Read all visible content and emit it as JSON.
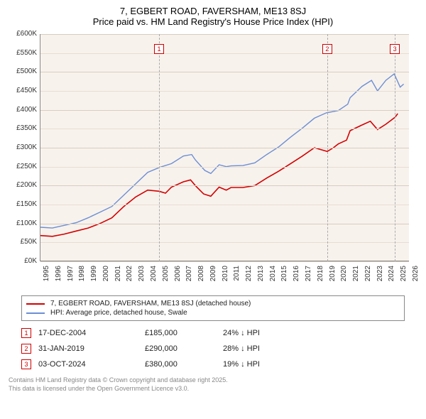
{
  "title_line1": "7, EGBERT ROAD, FAVERSHAM, ME13 8SJ",
  "title_line2": "Price paid vs. HM Land Registry's House Price Index (HPI)",
  "chart": {
    "type": "line",
    "background_color": "#f8f2ed",
    "grid_color": "#e6ddd3",
    "axis_color": "#888888",
    "y": {
      "min": 0,
      "max": 600,
      "step": 50,
      "unit": "K",
      "prefix": "£",
      "label_fontsize": 10
    },
    "x": {
      "min": 1995,
      "max": 2026,
      "step": 1,
      "label_fontsize": 10,
      "rotation": -90
    },
    "series": [
      {
        "id": "price_paid",
        "label": "7, EGBERT ROAD, FAVERSHAM, ME13 8SJ (detached house)",
        "color": "#d40000",
        "line_width": 1.6,
        "points": [
          [
            1995,
            68
          ],
          [
            1996,
            66
          ],
          [
            1997,
            72
          ],
          [
            1998,
            80
          ],
          [
            1999,
            88
          ],
          [
            2000,
            100
          ],
          [
            2001,
            115
          ],
          [
            2002,
            145
          ],
          [
            2003,
            170
          ],
          [
            2004,
            188
          ],
          [
            2004.96,
            185
          ],
          [
            2005.5,
            180
          ],
          [
            2006,
            196
          ],
          [
            2007,
            210
          ],
          [
            2007.6,
            215
          ],
          [
            2008,
            200
          ],
          [
            2008.7,
            178
          ],
          [
            2009.3,
            172
          ],
          [
            2010,
            196
          ],
          [
            2010.6,
            188
          ],
          [
            2011,
            195
          ],
          [
            2012,
            195
          ],
          [
            2013,
            200
          ],
          [
            2014,
            220
          ],
          [
            2015,
            238
          ],
          [
            2016,
            258
          ],
          [
            2017,
            278
          ],
          [
            2018,
            300
          ],
          [
            2019.08,
            290
          ],
          [
            2019.6,
            300
          ],
          [
            2020,
            310
          ],
          [
            2020.7,
            320
          ],
          [
            2021,
            345
          ],
          [
            2022,
            360
          ],
          [
            2022.7,
            370
          ],
          [
            2023.3,
            348
          ],
          [
            2024,
            362
          ],
          [
            2024.76,
            380
          ],
          [
            2025,
            390
          ]
        ]
      },
      {
        "id": "hpi",
        "label": "HPI: Average price, detached house, Swale",
        "color": "#6b8fd4",
        "line_width": 1.4,
        "points": [
          [
            1995,
            90
          ],
          [
            1996,
            88
          ],
          [
            1997,
            95
          ],
          [
            1998,
            102
          ],
          [
            1999,
            115
          ],
          [
            2000,
            130
          ],
          [
            2001,
            145
          ],
          [
            2002,
            175
          ],
          [
            2003,
            205
          ],
          [
            2004,
            235
          ],
          [
            2005,
            248
          ],
          [
            2006,
            258
          ],
          [
            2007,
            278
          ],
          [
            2007.7,
            282
          ],
          [
            2008,
            268
          ],
          [
            2008.8,
            240
          ],
          [
            2009.3,
            232
          ],
          [
            2010,
            255
          ],
          [
            2010.6,
            250
          ],
          [
            2011,
            252
          ],
          [
            2012,
            253
          ],
          [
            2013,
            260
          ],
          [
            2014,
            282
          ],
          [
            2015,
            302
          ],
          [
            2016,
            328
          ],
          [
            2017,
            352
          ],
          [
            2018,
            378
          ],
          [
            2019,
            392
          ],
          [
            2020,
            398
          ],
          [
            2020.8,
            415
          ],
          [
            2021,
            432
          ],
          [
            2022,
            462
          ],
          [
            2022.8,
            478
          ],
          [
            2023.3,
            450
          ],
          [
            2024,
            478
          ],
          [
            2024.7,
            495
          ],
          [
            2025.2,
            460
          ],
          [
            2025.5,
            468
          ]
        ]
      }
    ],
    "markers": [
      {
        "id": "1",
        "x": 2004.96
      },
      {
        "id": "2",
        "x": 2019.08
      },
      {
        "id": "3",
        "x": 2024.76
      }
    ]
  },
  "legend": {
    "items": [
      {
        "color": "#d40000",
        "label": "7, EGBERT ROAD, FAVERSHAM, ME13 8SJ (detached house)"
      },
      {
        "color": "#6b8fd4",
        "label": "HPI: Average price, detached house, Swale"
      }
    ]
  },
  "transactions": [
    {
      "n": "1",
      "date": "17-DEC-2004",
      "price": "£185,000",
      "diff": "24% ↓ HPI"
    },
    {
      "n": "2",
      "date": "31-JAN-2019",
      "price": "£290,000",
      "diff": "28% ↓ HPI"
    },
    {
      "n": "3",
      "date": "03-OCT-2024",
      "price": "£380,000",
      "diff": "19% ↓ HPI"
    }
  ],
  "footer_line1": "Contains HM Land Registry data © Crown copyright and database right 2025.",
  "footer_line2": "This data is licensed under the Open Government Licence v3.0."
}
